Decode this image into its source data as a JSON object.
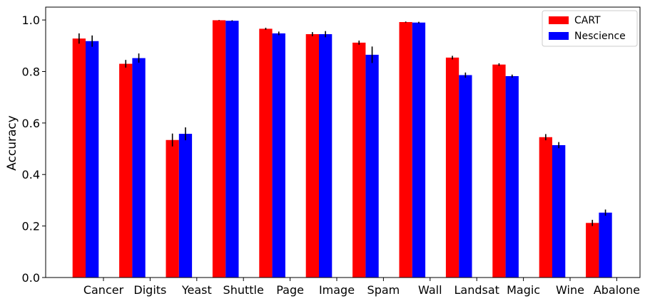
{
  "chart_data": {
    "type": "bar",
    "xlabel": "",
    "ylabel": "Accuracy",
    "ylim": [
      0,
      1.05
    ],
    "yticks": [
      "0.0",
      "0.2",
      "0.4",
      "0.6",
      "0.8",
      "1.0"
    ],
    "categories": [
      "Cancer",
      "Digits",
      "Yeast",
      "Shuttle",
      "Page",
      "Image",
      "Spam",
      "Wall",
      "Landsat",
      "Magic",
      "Wine",
      "Abalone"
    ],
    "series": [
      {
        "name": "CART",
        "color": "#ff0000",
        "values": [
          0.928,
          0.83,
          0.534,
          0.999,
          0.966,
          0.945,
          0.912,
          0.992,
          0.854,
          0.827,
          0.545,
          0.212
        ],
        "errors": [
          0.02,
          0.015,
          0.025,
          0.001,
          0.004,
          0.008,
          0.008,
          0.002,
          0.007,
          0.005,
          0.012,
          0.012
        ]
      },
      {
        "name": "Nescience",
        "color": "#0000ff",
        "values": [
          0.918,
          0.852,
          0.558,
          0.997,
          0.948,
          0.945,
          0.865,
          0.99,
          0.786,
          0.782,
          0.514,
          0.252
        ],
        "errors": [
          0.022,
          0.018,
          0.025,
          0.002,
          0.007,
          0.012,
          0.032,
          0.003,
          0.01,
          0.006,
          0.012,
          0.012
        ]
      }
    ],
    "legend_position": "top-right",
    "grid": false
  }
}
